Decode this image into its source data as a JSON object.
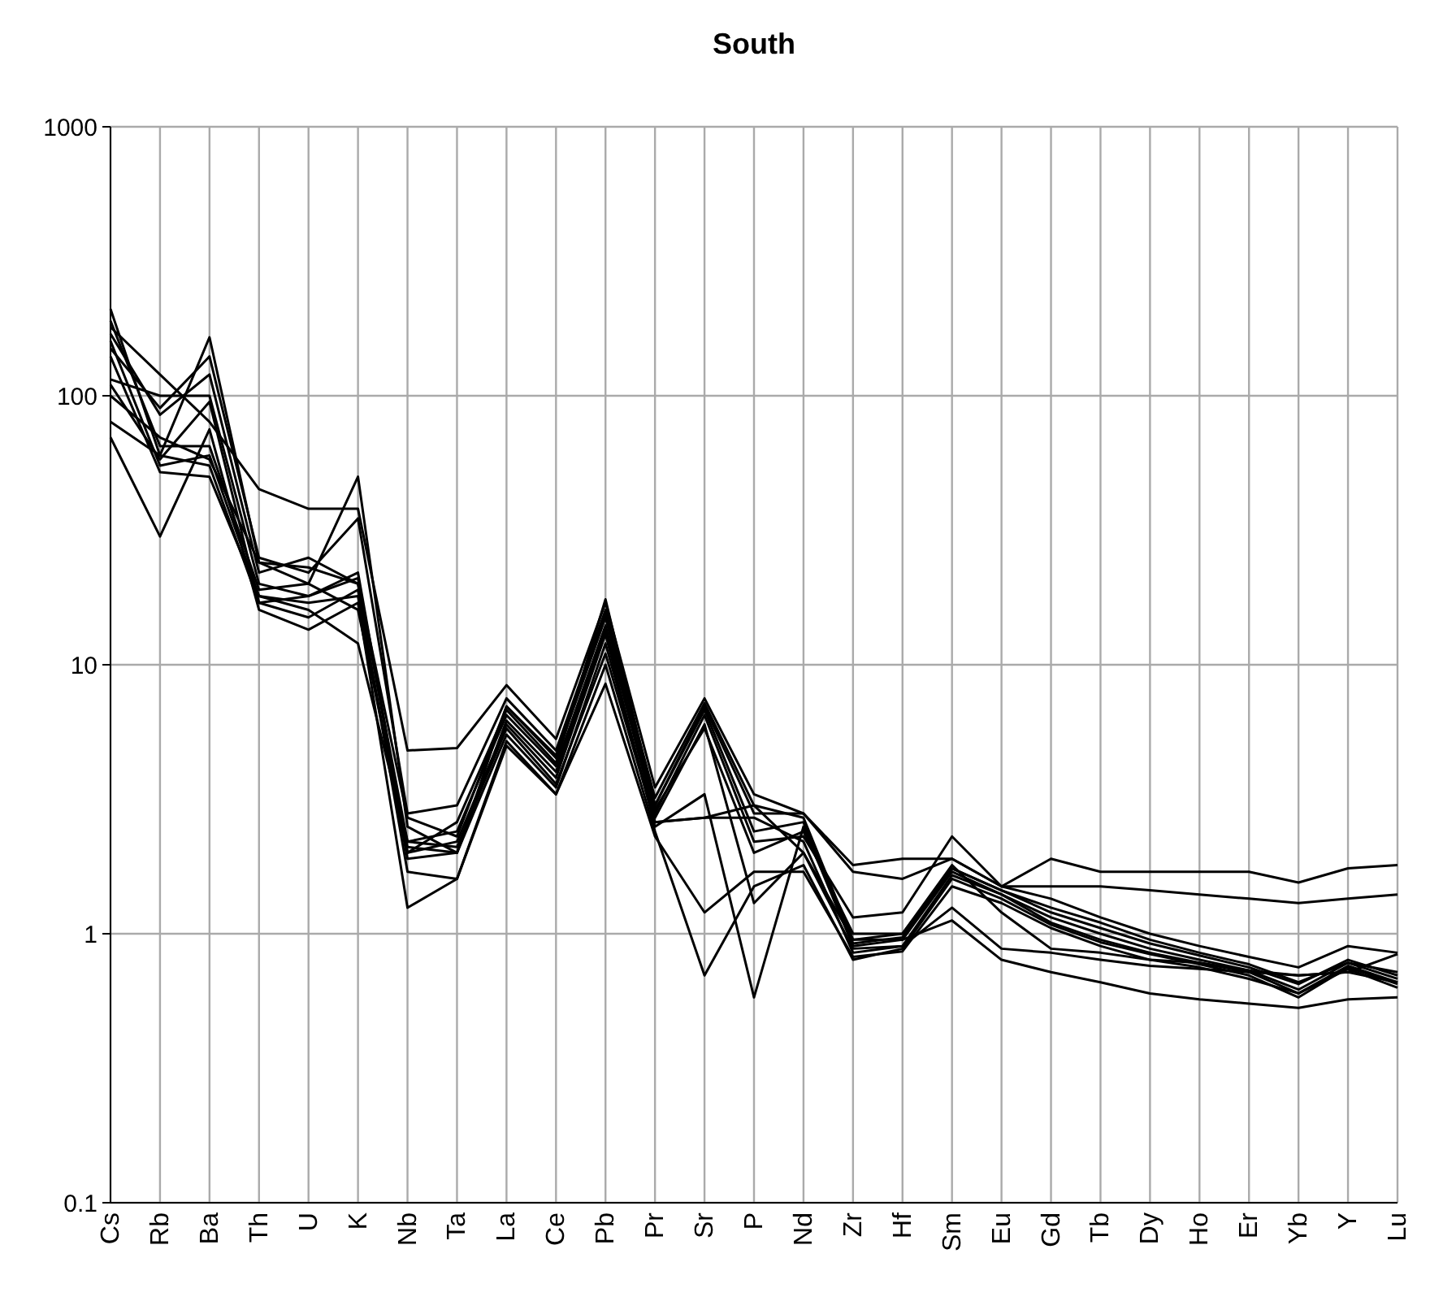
{
  "chart_data": {
    "type": "line",
    "title": "South",
    "categories": [
      "Cs",
      "Rb",
      "Ba",
      "Th",
      "U",
      "K",
      "Nb",
      "Ta",
      "La",
      "Ce",
      "Pb",
      "Pr",
      "Sr",
      "P",
      "Nd",
      "Zr",
      "Hf",
      "Sm",
      "Eu",
      "Gd",
      "Tb",
      "Dy",
      "Ho",
      "Er",
      "Yb",
      "Y",
      "Lu"
    ],
    "log": true,
    "grid": true,
    "marker": "none",
    "line_style": "solid",
    "ylim": [
      0.1,
      1000
    ],
    "yticks": [
      0.1,
      1,
      10,
      100,
      1000
    ],
    "series": [
      {
        "color": "#000000",
        "values": [
          180,
          120,
          80,
          45,
          38,
          38,
          4.8,
          4.9,
          8.4,
          5.3,
          17,
          3.5,
          7.5,
          3.3,
          2.8,
          1.8,
          1.9,
          1.9,
          1.5,
          1.9,
          1.7,
          1.7,
          1.7,
          1.7,
          1.55,
          1.75,
          1.8
        ]
      },
      {
        "color": "#000000",
        "values": [
          150,
          90,
          140,
          25,
          22,
          35,
          2.8,
          3.0,
          7.5,
          4.8,
          16,
          3.0,
          7.0,
          2.8,
          2.8,
          1.7,
          1.6,
          1.9,
          1.5,
          1.5,
          1.5,
          1.45,
          1.4,
          1.35,
          1.3,
          1.35,
          1.4
        ]
      },
      {
        "color": "#000000",
        "values": [
          210,
          60,
          165,
          24,
          20,
          50,
          2.5,
          2.0,
          7,
          4.5,
          15,
          2.8,
          6.5,
          2.2,
          2.3,
          1.15,
          1.2,
          2.3,
          1.5,
          1.35,
          1.15,
          1.0,
          0.9,
          0.82,
          0.75,
          0.9,
          0.85
        ]
      },
      {
        "color": "#000000",
        "values": [
          170,
          85,
          120,
          22,
          25,
          20,
          2.2,
          2.4,
          6.5,
          4.2,
          14,
          2.7,
          6.0,
          1.3,
          2.0,
          0.95,
          1.0,
          1.75,
          1.45,
          1.2,
          1.05,
          0.92,
          0.83,
          0.75,
          0.65,
          0.8,
          0.7
        ]
      },
      {
        "color": "#000000",
        "values": [
          115,
          100,
          100,
          20,
          18,
          22,
          2.0,
          2.2,
          6.0,
          3.8,
          13,
          2.5,
          3.3,
          0.58,
          2.5,
          0.9,
          0.95,
          1.7,
          1.4,
          1.15,
          1.0,
          0.88,
          0.8,
          0.73,
          0.62,
          0.78,
          0.68
        ]
      },
      {
        "color": "#000000",
        "values": [
          160,
          55,
          60,
          18,
          17,
          18,
          1.9,
          2.0,
          5.5,
          3.5,
          12,
          2.6,
          2.7,
          2.7,
          2.2,
          0.85,
          0.9,
          1.65,
          1.4,
          1.1,
          0.95,
          0.85,
          0.78,
          0.72,
          0.6,
          0.76,
          0.66
        ]
      },
      {
        "color": "#000000",
        "values": [
          80,
          60,
          55,
          17,
          15,
          19,
          1.7,
          1.6,
          5.2,
          3.3,
          10,
          2.4,
          0.7,
          1.5,
          1.8,
          0.8,
          0.88,
          1.6,
          1.35,
          1.08,
          0.93,
          0.84,
          0.77,
          0.7,
          0.58,
          0.75,
          0.65
        ]
      },
      {
        "color": "#000000",
        "values": [
          70,
          30,
          75,
          16,
          13.5,
          17,
          1.25,
          1.6,
          5.0,
          3.3,
          8.5,
          2.3,
          1.2,
          1.7,
          1.7,
          0.82,
          0.86,
          1.5,
          1.3,
          1.05,
          0.9,
          0.8,
          0.75,
          0.68,
          0.6,
          0.74,
          0.63
        ]
      },
      {
        "color": "#000000",
        "values": [
          190,
          65,
          65,
          19,
          20,
          16,
          2.1,
          2.0,
          6.2,
          4.0,
          13.5,
          2.9,
          5.8,
          2.0,
          2.4,
          1.0,
          1.0,
          1.8,
          1.2,
          0.88,
          0.85,
          0.8,
          0.78,
          0.73,
          0.7,
          0.72,
          0.84
        ]
      },
      {
        "color": "#000000",
        "values": [
          140,
          52,
          50,
          18,
          16,
          12,
          2.2,
          2.1,
          5.8,
          3.6,
          11,
          2.6,
          2.7,
          3.0,
          2.0,
          0.88,
          0.9,
          1.25,
          0.88,
          0.85,
          0.8,
          0.76,
          0.74,
          0.72,
          0.7,
          0.72,
          0.66
        ]
      },
      {
        "color": "#000000",
        "values": [
          100,
          70,
          58,
          24,
          23,
          20,
          2.7,
          2.3,
          7.0,
          4.6,
          15.5,
          3.2,
          7.2,
          3.0,
          2.7,
          0.95,
          0.95,
          1.12,
          0.8,
          0.72,
          0.66,
          0.6,
          0.57,
          0.55,
          0.53,
          0.57,
          0.58
        ]
      },
      {
        "color": "#000000",
        "values": [
          110,
          58,
          95,
          17,
          18,
          21,
          2.0,
          2.6,
          6.8,
          4.3,
          17.5,
          3.0,
          6.8,
          2.4,
          2.6,
          0.92,
          0.97,
          1.75,
          1.45,
          1.25,
          1.1,
          0.95,
          0.85,
          0.77,
          0.66,
          0.78,
          0.72
        ]
      }
    ]
  }
}
